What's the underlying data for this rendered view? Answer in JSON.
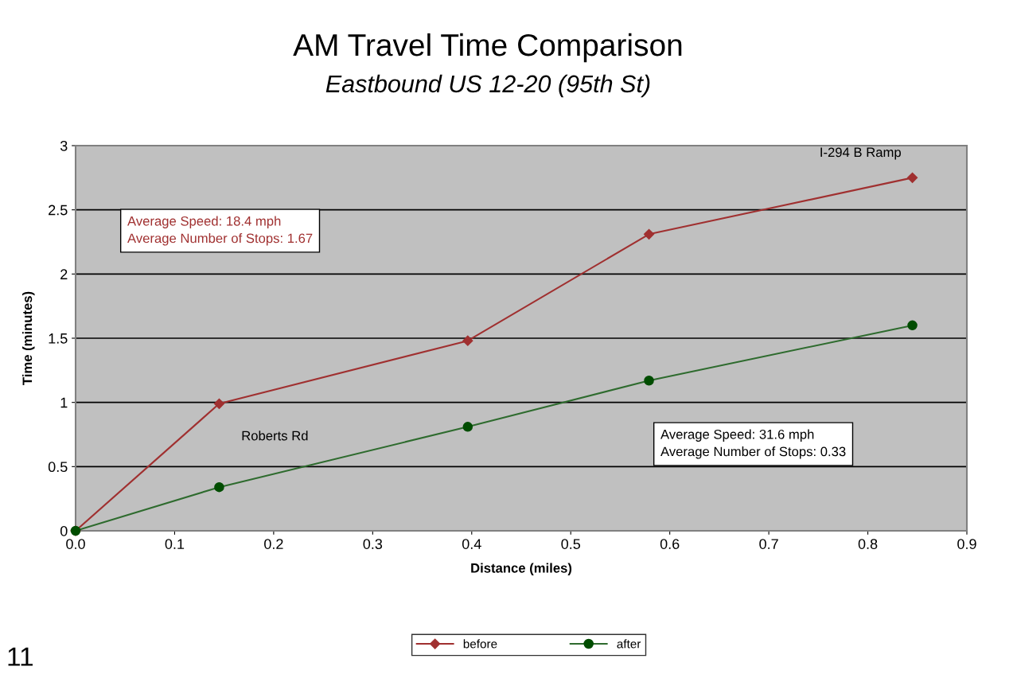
{
  "chart_data": {
    "type": "line",
    "title": "AM Travel Time Comparison",
    "subtitle": "Eastbound US 12-20 (95th St)",
    "xlabel": "Distance (miles)",
    "ylabel": "Time (minutes)",
    "x": [
      0,
      0.145,
      0.396,
      0.579,
      0.845
    ],
    "series": [
      {
        "name": "before",
        "color": "#a03030",
        "values": [
          0,
          0.99,
          1.48,
          2.31,
          2.75
        ],
        "marker": "diamond"
      },
      {
        "name": "after",
        "color": "#2e6b2e",
        "values": [
          0,
          0.34,
          0.81,
          1.17,
          1.6
        ],
        "marker": "circle"
      }
    ],
    "xlim": [
      0,
      0.9
    ],
    "xticks": [
      {
        "value": 0,
        "label": "0.0"
      },
      0.1,
      0.2,
      0.3,
      0.4,
      0.5,
      0.6,
      0.7,
      0.8,
      0.9
    ],
    "ylim": [
      0,
      3
    ],
    "yticks": [
      0,
      0.5,
      1,
      1.5,
      2,
      2.5,
      3
    ],
    "grid": "y",
    "legend": "bottom",
    "line_style": "solid",
    "annotations": [
      {
        "text": "Roberts Rd",
        "x": 0.145,
        "y": 0.99
      },
      {
        "text": "I-294 B Ramp",
        "x": 0.845,
        "y": 2.75
      },
      "Average Speed: 18.4 mph\nAverage Number of Stops: 1.67",
      "Average Speed: 31.6 mph\nAverage Number of Stops: 0.33",
      "11"
    ]
  }
}
